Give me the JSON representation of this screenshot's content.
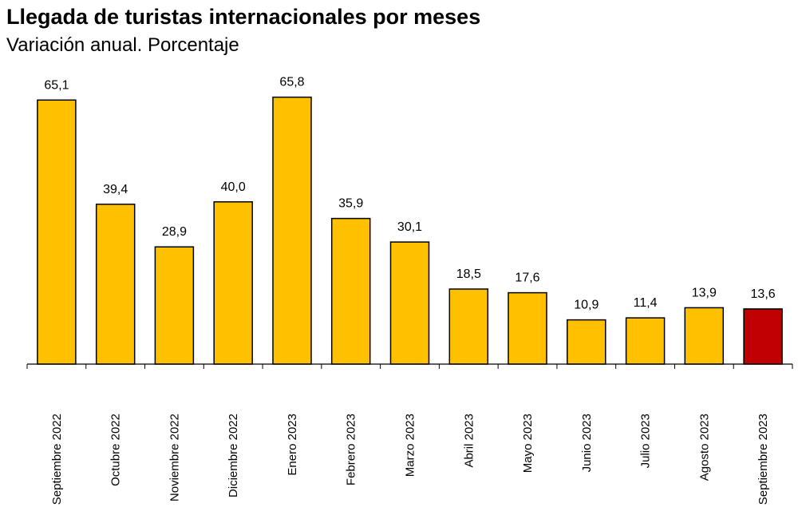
{
  "chart_data": {
    "type": "bar",
    "title": "Llegada de turistas internacionales por meses",
    "subtitle": "Variación anual. Porcentaje",
    "xlabel": "",
    "ylabel": "",
    "ylim": [
      0,
      70
    ],
    "grid": false,
    "legend": "none",
    "categories": [
      "Septiembre 2022",
      "Octubre 2022",
      "Noviembre 2022",
      "Diciembre 2022",
      "Enero 2023",
      "Febrero 2023",
      "Marzo 2023",
      "Abril 2023",
      "Mayo 2023",
      "Junio 2023",
      "Julio 2023",
      "Agosto 2023",
      "Septiembre 2023"
    ],
    "values": [
      65.1,
      39.4,
      28.9,
      40.0,
      65.8,
      35.9,
      30.1,
      18.5,
      17.6,
      10.9,
      11.4,
      13.9,
      13.6
    ],
    "value_labels": [
      "65,1",
      "39,4",
      "28,9",
      "40,0",
      "65,8",
      "35,9",
      "30,1",
      "18,5",
      "17,6",
      "10,9",
      "11,4",
      "13,9",
      "13,6"
    ],
    "colors": {
      "bar": "#FFC000",
      "highlight": "#C00000",
      "border": "#000000"
    },
    "highlight_index": 12
  }
}
